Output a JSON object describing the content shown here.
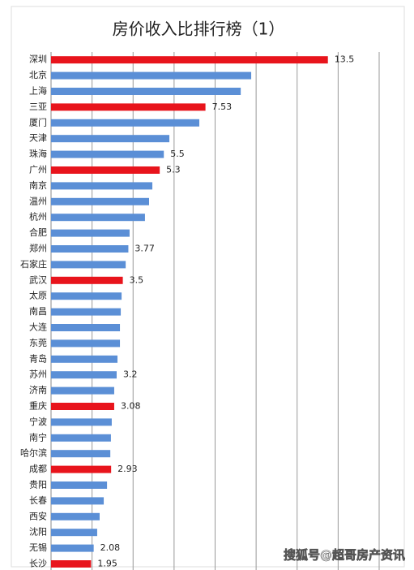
{
  "chart_data": {
    "type": "barh",
    "title": "房价收入比排行榜（1）",
    "categories": [
      "深圳",
      "北京",
      "上海",
      "三亚",
      "厦门",
      "天津",
      "珠海",
      "广州",
      "南京",
      "温州",
      "杭州",
      "合肥",
      "郑州",
      "石家庄",
      "武汉",
      "太原",
      "南昌",
      "大连",
      "东莞",
      "青岛",
      "苏州",
      "济南",
      "重庆",
      "宁波",
      "南宁",
      "哈尔滨",
      "成都",
      "贵阳",
      "长春",
      "西安",
      "沈阳",
      "无锡",
      "长沙"
    ],
    "values": [
      13.5,
      9.76,
      9.25,
      7.53,
      7.23,
      5.77,
      5.5,
      5.3,
      4.94,
      4.78,
      4.58,
      3.83,
      3.77,
      3.64,
      3.5,
      3.44,
      3.4,
      3.36,
      3.36,
      3.24,
      3.2,
      3.08,
      3.08,
      2.96,
      2.92,
      2.89,
      2.93,
      2.73,
      2.57,
      2.37,
      2.25,
      2.08,
      1.95
    ],
    "value_labels": [
      "13.5",
      null,
      null,
      "7.53",
      null,
      null,
      "5.5",
      "5.3",
      null,
      null,
      null,
      null,
      "3.77",
      null,
      "3.5",
      null,
      null,
      null,
      null,
      null,
      "3.2",
      null,
      "3.08",
      null,
      null,
      null,
      "2.93",
      null,
      null,
      null,
      null,
      "2.08",
      "1.95"
    ],
    "colors": [
      "#e8141c",
      "#5b8fd6",
      "#5b8fd6",
      "#e8141c",
      "#5b8fd6",
      "#5b8fd6",
      "#5b8fd6",
      "#e8141c",
      "#5b8fd6",
      "#5b8fd6",
      "#5b8fd6",
      "#5b8fd6",
      "#5b8fd6",
      "#5b8fd6",
      "#e8141c",
      "#5b8fd6",
      "#5b8fd6",
      "#5b8fd6",
      "#5b8fd6",
      "#5b8fd6",
      "#5b8fd6",
      "#5b8fd6",
      "#e8141c",
      "#5b8fd6",
      "#5b8fd6",
      "#5b8fd6",
      "#e8141c",
      "#5b8fd6",
      "#5b8fd6",
      "#5b8fd6",
      "#5b8fd6",
      "#5b8fd6",
      "#e8141c"
    ],
    "xlim": [
      0,
      16
    ],
    "xticks": [
      0,
      2,
      4,
      6,
      8,
      10,
      12,
      14,
      16
    ],
    "grid": true,
    "annotation": "搜狐号@超哥房产资讯"
  }
}
